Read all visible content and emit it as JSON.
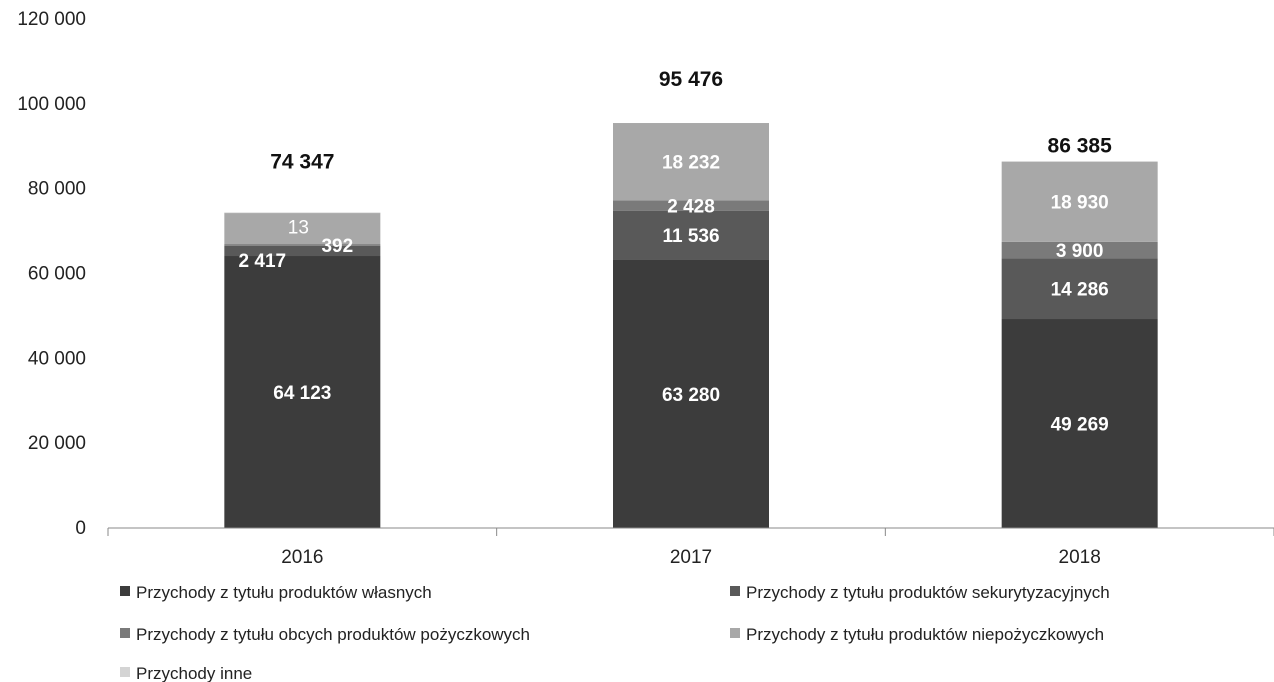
{
  "chart_data": {
    "type": "bar",
    "stacked": true,
    "categories": [
      "2016",
      "2017",
      "2018"
    ],
    "ylim": [
      0,
      120000
    ],
    "yticks": [
      0,
      20000,
      40000,
      60000,
      80000,
      100000,
      120000
    ],
    "ytick_labels": [
      "0",
      "20 000",
      "40 000",
      "60 000",
      "80 000",
      "100 000",
      "120 000"
    ],
    "grid": false,
    "legend_position": "bottom",
    "series": [
      {
        "name": "Przychody z tytułu produktów własnych",
        "color": "#3c3c3c",
        "values": [
          64123,
          63280,
          49269
        ],
        "labels": [
          "64 123",
          "63 280",
          "49 269"
        ]
      },
      {
        "name": "Przychody z tytułu produktów sekurytyzacyjnych",
        "color": "#595959",
        "values": [
          2417,
          11536,
          14286
        ],
        "labels": [
          "2 417",
          "11 536",
          "14 286"
        ]
      },
      {
        "name": "Przychody z tytułu obcych produktów pożyczkowych",
        "color": "#7a7a7a",
        "values": [
          392,
          2428,
          3900
        ],
        "labels": [
          "392",
          "2 428",
          "3 900"
        ]
      },
      {
        "name": "Przychody z tytułu produktów niepożyczkowych",
        "color": "#a8a8a8",
        "values": [
          7402,
          18232,
          18930
        ],
        "labels": [
          "",
          "18 232",
          "18 930"
        ]
      },
      {
        "name": "Przychody inne",
        "color": "#d4d4d4",
        "values": [
          13,
          0,
          0
        ],
        "labels": [
          "13",
          "",
          ""
        ]
      }
    ],
    "totals": [
      74347,
      95476,
      86385
    ],
    "total_labels": [
      "74 347",
      "95 476",
      "86 385"
    ]
  }
}
